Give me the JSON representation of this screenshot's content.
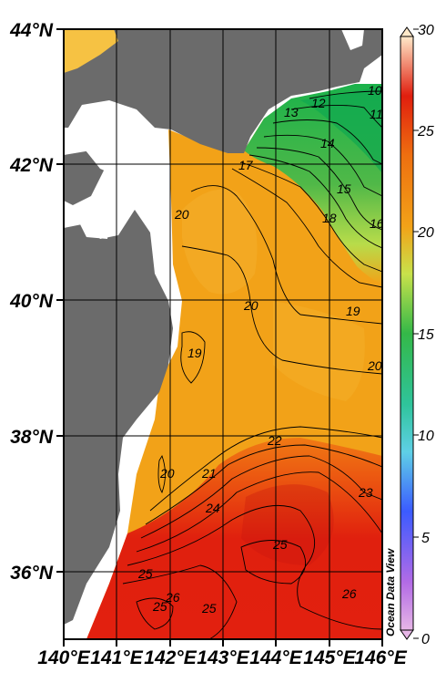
{
  "map": {
    "lat_labels": [
      "44°N",
      "42°N",
      "40°N",
      "38°N",
      "36°N"
    ],
    "lon_labels": [
      "140°E",
      "141°E",
      "142°E",
      "143°E",
      "144°E",
      "145°E",
      "146°E"
    ],
    "contour_labels": [
      "10",
      "11",
      "12",
      "13",
      "14",
      "15",
      "16",
      "17",
      "18",
      "19",
      "20",
      "20",
      "20",
      "19",
      "20",
      "21",
      "22",
      "23",
      "24",
      "25",
      "25",
      "25",
      "25",
      "26",
      "26"
    ],
    "credit": "Ocean Data View",
    "colors": {
      "land": "#6b6b6b",
      "grid": "#000000",
      "orange": "#f2a218",
      "red": "#e01e0e",
      "green": "#27b449"
    }
  },
  "colorbar": {
    "ticks": [
      "30",
      "25",
      "20",
      "15",
      "10",
      "5",
      "0"
    ]
  },
  "chart_data": {
    "type": "heatmap",
    "title": "",
    "xlabel": "",
    "ylabel": "",
    "xlim": [
      140,
      146
    ],
    "ylim": [
      35,
      44
    ],
    "colorbar_range": [
      0,
      30
    ],
    "x_ticks": [
      "140°E",
      "141°E",
      "142°E",
      "143°E",
      "144°E",
      "145°E",
      "146°E"
    ],
    "y_ticks": [
      "36°N",
      "38°N",
      "40°N",
      "42°N",
      "44°N"
    ],
    "contour_levels": [
      10,
      11,
      12,
      13,
      14,
      15,
      16,
      17,
      18,
      19,
      20,
      21,
      22,
      23,
      24,
      25,
      26
    ]
  }
}
